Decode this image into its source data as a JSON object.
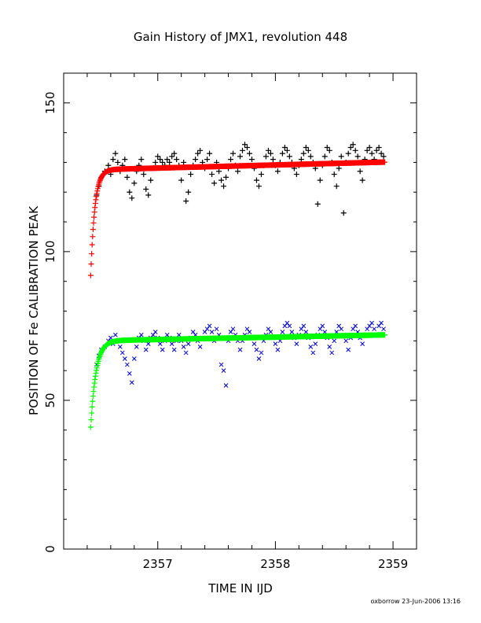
{
  "chart_data": {
    "type": "scatter",
    "title": "Gain History of JMX1, revolution 448",
    "xlabel": "TIME IN IJD",
    "ylabel": "POSITION OF Fe CALIBRATION PEAK",
    "xlim": [
      2356.2,
      2359.2
    ],
    "ylim": [
      0,
      160
    ],
    "x_ticks": [
      2357,
      2358,
      2359
    ],
    "y_ticks": [
      0,
      50,
      100,
      150
    ],
    "grid": false,
    "footer": "oxborrow 23-Jun-2006 13:16",
    "series": [
      {
        "role": "measured",
        "marker": "plus",
        "color": "#000000",
        "points": [
          [
            2356.48,
            119
          ],
          [
            2356.5,
            122
          ],
          [
            2356.52,
            125
          ],
          [
            2356.55,
            127
          ],
          [
            2356.58,
            129
          ],
          [
            2356.6,
            126
          ],
          [
            2356.62,
            131
          ],
          [
            2356.64,
            133
          ],
          [
            2356.66,
            130
          ],
          [
            2356.68,
            127
          ],
          [
            2356.7,
            129
          ],
          [
            2356.72,
            131
          ],
          [
            2356.74,
            125
          ],
          [
            2356.76,
            120
          ],
          [
            2356.78,
            118
          ],
          [
            2356.8,
            123
          ],
          [
            2356.82,
            127
          ],
          [
            2356.84,
            129
          ],
          [
            2356.86,
            131
          ],
          [
            2356.88,
            126
          ],
          [
            2356.9,
            121
          ],
          [
            2356.92,
            119
          ],
          [
            2356.94,
            124
          ],
          [
            2356.96,
            128
          ],
          [
            2356.98,
            130
          ],
          [
            2357.0,
            132
          ],
          [
            2357.02,
            131
          ],
          [
            2357.04,
            130
          ],
          [
            2357.06,
            129
          ],
          [
            2357.08,
            131
          ],
          [
            2357.1,
            130
          ],
          [
            2357.12,
            132
          ],
          [
            2357.14,
            133
          ],
          [
            2357.16,
            131
          ],
          [
            2357.18,
            129
          ],
          [
            2357.2,
            124
          ],
          [
            2357.22,
            130
          ],
          [
            2357.24,
            117
          ],
          [
            2357.26,
            120
          ],
          [
            2357.28,
            126
          ],
          [
            2357.3,
            129
          ],
          [
            2357.32,
            131
          ],
          [
            2357.34,
            133
          ],
          [
            2357.36,
            134
          ],
          [
            2357.38,
            130
          ],
          [
            2357.4,
            128
          ],
          [
            2357.42,
            131
          ],
          [
            2357.44,
            133
          ],
          [
            2357.46,
            126
          ],
          [
            2357.48,
            123
          ],
          [
            2357.5,
            130
          ],
          [
            2357.52,
            127
          ],
          [
            2357.54,
            124
          ],
          [
            2357.56,
            122
          ],
          [
            2357.58,
            125
          ],
          [
            2357.6,
            128
          ],
          [
            2357.62,
            131
          ],
          [
            2357.64,
            133
          ],
          [
            2357.66,
            129
          ],
          [
            2357.68,
            127
          ],
          [
            2357.7,
            132
          ],
          [
            2357.72,
            134
          ],
          [
            2357.74,
            136
          ],
          [
            2357.76,
            135
          ],
          [
            2357.78,
            133
          ],
          [
            2357.8,
            131
          ],
          [
            2357.82,
            128
          ],
          [
            2357.84,
            124
          ],
          [
            2357.86,
            122
          ],
          [
            2357.88,
            126
          ],
          [
            2357.9,
            129
          ],
          [
            2357.92,
            132
          ],
          [
            2357.94,
            134
          ],
          [
            2357.96,
            133
          ],
          [
            2357.98,
            131
          ],
          [
            2358.0,
            129
          ],
          [
            2358.02,
            127
          ],
          [
            2358.04,
            130
          ],
          [
            2358.06,
            133
          ],
          [
            2358.08,
            135
          ],
          [
            2358.1,
            134
          ],
          [
            2358.12,
            132
          ],
          [
            2358.14,
            130
          ],
          [
            2358.16,
            128
          ],
          [
            2358.18,
            126
          ],
          [
            2358.2,
            129
          ],
          [
            2358.22,
            131
          ],
          [
            2358.24,
            133
          ],
          [
            2358.26,
            135
          ],
          [
            2358.28,
            134
          ],
          [
            2358.3,
            132
          ],
          [
            2358.32,
            130
          ],
          [
            2358.34,
            128
          ],
          [
            2358.36,
            116
          ],
          [
            2358.38,
            124
          ],
          [
            2358.4,
            129
          ],
          [
            2358.42,
            132
          ],
          [
            2358.44,
            135
          ],
          [
            2358.46,
            134
          ],
          [
            2358.48,
            130
          ],
          [
            2358.5,
            126
          ],
          [
            2358.52,
            122
          ],
          [
            2358.54,
            128
          ],
          [
            2358.56,
            132
          ],
          [
            2358.58,
            113
          ],
          [
            2358.6,
            130
          ],
          [
            2358.62,
            133
          ],
          [
            2358.64,
            135
          ],
          [
            2358.66,
            136
          ],
          [
            2358.68,
            134
          ],
          [
            2358.7,
            132
          ],
          [
            2358.72,
            127
          ],
          [
            2358.74,
            124
          ],
          [
            2358.76,
            131
          ],
          [
            2358.78,
            134
          ],
          [
            2358.8,
            135
          ],
          [
            2358.82,
            133
          ],
          [
            2358.84,
            131
          ],
          [
            2358.86,
            134
          ],
          [
            2358.88,
            135
          ],
          [
            2358.9,
            133
          ],
          [
            2358.92,
            132
          ]
        ]
      },
      {
        "role": "fit",
        "marker": "plus",
        "color": "#ff0000",
        "model": {
          "a": 92,
          "b": 127.5,
          "slope": 2.6,
          "tau": 0.035,
          "x0": 2356.43,
          "x_end": 2358.93
        }
      },
      {
        "role": "measured",
        "marker": "cross",
        "color": "#0000cc",
        "points": [
          [
            2356.48,
            62
          ],
          [
            2356.5,
            65
          ],
          [
            2356.52,
            67
          ],
          [
            2356.55,
            68
          ],
          [
            2356.58,
            70
          ],
          [
            2356.6,
            71
          ],
          [
            2356.62,
            69
          ],
          [
            2356.64,
            72
          ],
          [
            2356.66,
            70
          ],
          [
            2356.68,
            68
          ],
          [
            2356.7,
            66
          ],
          [
            2356.72,
            64
          ],
          [
            2356.74,
            62
          ],
          [
            2356.76,
            59
          ],
          [
            2356.78,
            56
          ],
          [
            2356.8,
            64
          ],
          [
            2356.82,
            68
          ],
          [
            2356.84,
            71
          ],
          [
            2356.86,
            72
          ],
          [
            2356.88,
            70
          ],
          [
            2356.9,
            67
          ],
          [
            2356.92,
            69
          ],
          [
            2356.94,
            71
          ],
          [
            2356.96,
            72
          ],
          [
            2356.98,
            73
          ],
          [
            2357.0,
            71
          ],
          [
            2357.02,
            69
          ],
          [
            2357.04,
            67
          ],
          [
            2357.06,
            70
          ],
          [
            2357.08,
            72
          ],
          [
            2357.1,
            71
          ],
          [
            2357.12,
            69
          ],
          [
            2357.14,
            67
          ],
          [
            2357.16,
            70
          ],
          [
            2357.18,
            72
          ],
          [
            2357.2,
            70
          ],
          [
            2357.22,
            68
          ],
          [
            2357.24,
            66
          ],
          [
            2357.26,
            69
          ],
          [
            2357.28,
            71
          ],
          [
            2357.3,
            73
          ],
          [
            2357.32,
            72
          ],
          [
            2357.34,
            70
          ],
          [
            2357.36,
            68
          ],
          [
            2357.38,
            71
          ],
          [
            2357.4,
            73
          ],
          [
            2357.42,
            74
          ],
          [
            2357.44,
            75
          ],
          [
            2357.46,
            73
          ],
          [
            2357.48,
            70
          ],
          [
            2357.5,
            74
          ],
          [
            2357.52,
            72
          ],
          [
            2357.54,
            62
          ],
          [
            2357.56,
            60
          ],
          [
            2357.58,
            55
          ],
          [
            2357.6,
            70
          ],
          [
            2357.62,
            73
          ],
          [
            2357.64,
            74
          ],
          [
            2357.66,
            72
          ],
          [
            2357.68,
            70
          ],
          [
            2357.7,
            67
          ],
          [
            2357.72,
            70
          ],
          [
            2357.74,
            72
          ],
          [
            2357.76,
            74
          ],
          [
            2357.78,
            73
          ],
          [
            2357.8,
            71
          ],
          [
            2357.82,
            69
          ],
          [
            2357.84,
            67
          ],
          [
            2357.86,
            64
          ],
          [
            2357.88,
            66
          ],
          [
            2357.9,
            70
          ],
          [
            2357.92,
            72
          ],
          [
            2357.94,
            74
          ],
          [
            2357.96,
            73
          ],
          [
            2357.98,
            71
          ],
          [
            2358.0,
            69
          ],
          [
            2358.02,
            67
          ],
          [
            2358.04,
            70
          ],
          [
            2358.06,
            73
          ],
          [
            2358.08,
            75
          ],
          [
            2358.1,
            76
          ],
          [
            2358.12,
            75
          ],
          [
            2358.14,
            73
          ],
          [
            2358.16,
            71
          ],
          [
            2358.18,
            69
          ],
          [
            2358.2,
            72
          ],
          [
            2358.22,
            74
          ],
          [
            2358.24,
            75
          ],
          [
            2358.26,
            73
          ],
          [
            2358.28,
            71
          ],
          [
            2358.3,
            68
          ],
          [
            2358.32,
            66
          ],
          [
            2358.34,
            69
          ],
          [
            2358.36,
            72
          ],
          [
            2358.38,
            74
          ],
          [
            2358.4,
            75
          ],
          [
            2358.42,
            73
          ],
          [
            2358.44,
            71
          ],
          [
            2358.46,
            68
          ],
          [
            2358.48,
            66
          ],
          [
            2358.5,
            70
          ],
          [
            2358.52,
            73
          ],
          [
            2358.54,
            75
          ],
          [
            2358.56,
            74
          ],
          [
            2358.58,
            72
          ],
          [
            2358.6,
            70
          ],
          [
            2358.62,
            67
          ],
          [
            2358.64,
            71
          ],
          [
            2358.66,
            74
          ],
          [
            2358.68,
            75
          ],
          [
            2358.7,
            73
          ],
          [
            2358.72,
            71
          ],
          [
            2358.74,
            69
          ],
          [
            2358.76,
            72
          ],
          [
            2358.78,
            74
          ],
          [
            2358.8,
            75
          ],
          [
            2358.82,
            76
          ],
          [
            2358.84,
            74
          ],
          [
            2358.86,
            72
          ],
          [
            2358.88,
            75
          ],
          [
            2358.9,
            76
          ],
          [
            2358.92,
            74
          ]
        ]
      },
      {
        "role": "fit",
        "marker": "plus",
        "color": "#00ff00",
        "model": {
          "a": 41,
          "b": 70,
          "slope": 2.0,
          "tau": 0.045,
          "x0": 2356.43,
          "x_end": 2358.93
        }
      }
    ]
  }
}
